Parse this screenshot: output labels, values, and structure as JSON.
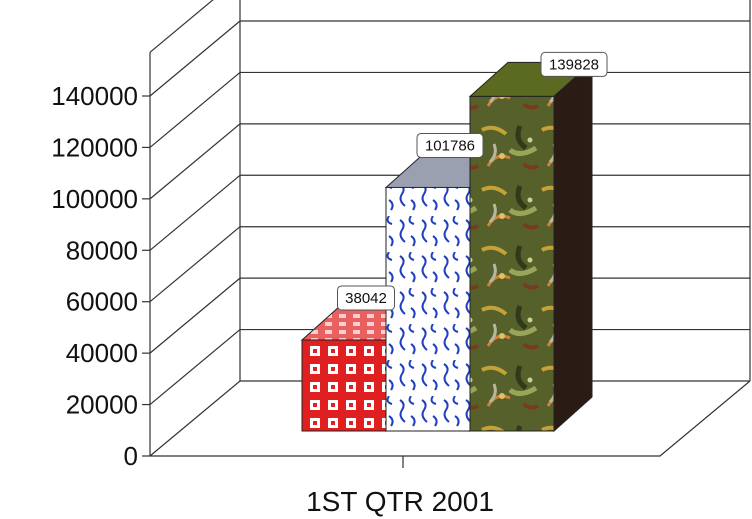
{
  "chart_data": {
    "type": "bar",
    "categories": [
      "1ST QTR 2001"
    ],
    "series": [
      {
        "values": [
          38042
        ],
        "color": "#e02020",
        "pattern": "red-squares"
      },
      {
        "values": [
          101786
        ],
        "color": "#1f3fbf",
        "pattern": "blue-waves"
      },
      {
        "values": [
          139828
        ],
        "color": "#5a6a28",
        "pattern": "texture-foliage"
      }
    ],
    "data_labels": [
      "38042",
      "101786",
      "139828"
    ],
    "yticks": [
      "0",
      "20000",
      "40000",
      "60000",
      "80000",
      "100000",
      "120000",
      "140000"
    ],
    "ylim": [
      0,
      140000
    ],
    "three_d": true,
    "grid": true,
    "legend": "none"
  }
}
